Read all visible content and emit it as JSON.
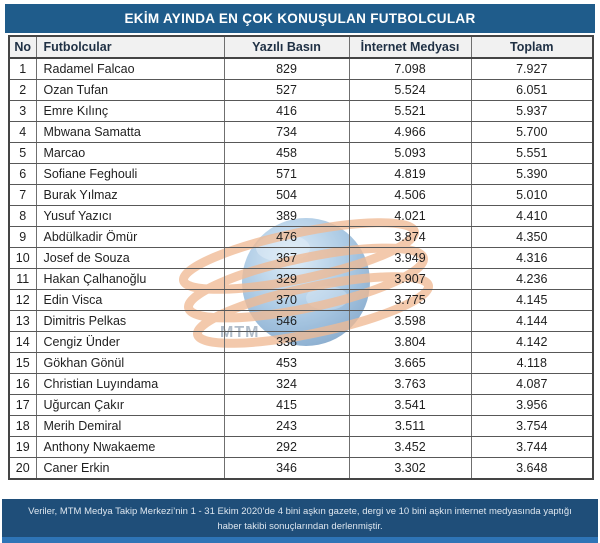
{
  "title": "EKİM AYINDA EN ÇOK KONUŞULAN FUTBOLCULAR",
  "watermark": {
    "label": "MTM"
  },
  "footer": {
    "text": "Veriler, MTM Medya Takip Merkezi’nin 1 - 31 Ekim 2020’de 4 bini aşkın gazete, dergi ve 10 bini aşkın internet medyasında yaptığı haber takibi sonuçlarından derlenmiştir."
  },
  "colors": {
    "title_bar_bg": "#1F5C8B",
    "title_text": "#FFFFFF",
    "header_row_bg": "#F1F1F1",
    "header_text": "#1F3044",
    "footer_bg": "#1F4E79",
    "footer_strip": "#2E74B6",
    "watermark_orange": "#ECA878",
    "watermark_blue": "#3F7CB5"
  },
  "chart_data": {
    "type": "table",
    "title": "EKİM AYINDA EN ÇOK KONUŞULAN FUTBOLCULAR",
    "columns": [
      "No",
      "Futbolcular",
      "Yazılı Basın",
      "İnternet Medyası",
      "Toplam"
    ],
    "rows": [
      [
        "1",
        "Radamel Falcao",
        "829",
        "7.098",
        "7.927"
      ],
      [
        "2",
        "Ozan Tufan",
        "527",
        "5.524",
        "6.051"
      ],
      [
        "3",
        "Emre Kılınç",
        "416",
        "5.521",
        "5.937"
      ],
      [
        "4",
        "Mbwana Samatta",
        "734",
        "4.966",
        "5.700"
      ],
      [
        "5",
        "Marcao",
        "458",
        "5.093",
        "5.551"
      ],
      [
        "6",
        "Sofiane Feghouli",
        "571",
        "4.819",
        "5.390"
      ],
      [
        "7",
        "Burak Yılmaz",
        "504",
        "4.506",
        "5.010"
      ],
      [
        "8",
        "Yusuf Yazıcı",
        "389",
        "4.021",
        "4.410"
      ],
      [
        "9",
        "Abdülkadir Ömür",
        "476",
        "3.874",
        "4.350"
      ],
      [
        "10",
        "Josef de Souza",
        "367",
        "3.949",
        "4.316"
      ],
      [
        "11",
        "Hakan Çalhanoğlu",
        "329",
        "3.907",
        "4.236"
      ],
      [
        "12",
        "Edin Visca",
        "370",
        "3.775",
        "4.145"
      ],
      [
        "13",
        "Dimitris Pelkas",
        "546",
        "3.598",
        "4.144"
      ],
      [
        "14",
        "Cengiz Ünder",
        "338",
        "3.804",
        "4.142"
      ],
      [
        "15",
        "Gökhan Gönül",
        "453",
        "3.665",
        "4.118"
      ],
      [
        "16",
        "Christian Luyındama",
        "324",
        "3.763",
        "4.087"
      ],
      [
        "17",
        "Uğurcan Çakır",
        "415",
        "3.541",
        "3.956"
      ],
      [
        "18",
        "Merih Demiral",
        "243",
        "3.511",
        "3.754"
      ],
      [
        "19",
        "Anthony Nwakaeme",
        "292",
        "3.452",
        "3.744"
      ],
      [
        "20",
        "Caner Erkin",
        "346",
        "3.302",
        "3.648"
      ]
    ]
  }
}
